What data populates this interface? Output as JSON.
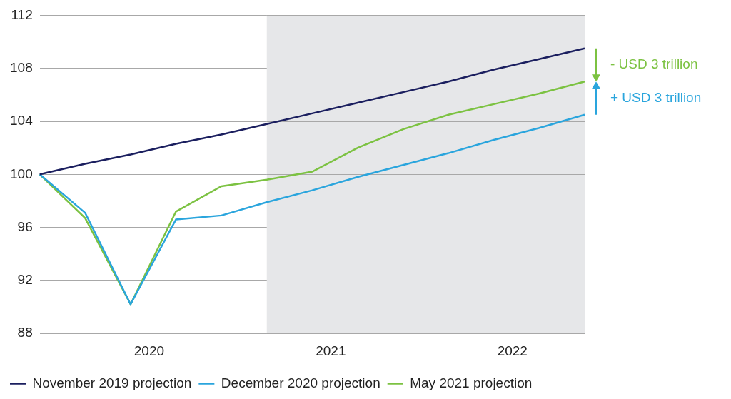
{
  "chart_data": {
    "type": "line",
    "categories": [
      null,
      null,
      "2020",
      null,
      null,
      null,
      "2021",
      null,
      null,
      null,
      "2022",
      null,
      null
    ],
    "series": [
      {
        "name": "November 2019 projection",
        "color": "#1b1f5f",
        "values": [
          100,
          100.8,
          101.5,
          102.3,
          103.0,
          103.8,
          104.6,
          105.4,
          106.2,
          107.0,
          107.9,
          108.7,
          109.5
        ]
      },
      {
        "name": "December 2020 projection",
        "color": "#2aa5dd",
        "values": [
          100,
          97.1,
          90.2,
          96.6,
          96.9,
          97.9,
          98.8,
          99.8,
          100.7,
          101.6,
          102.6,
          103.5,
          104.5
        ]
      },
      {
        "name": "May 2021 projection",
        "color": "#7cc242",
        "values": [
          100,
          96.7,
          90.2,
          97.2,
          99.1,
          99.6,
          100.2,
          102.0,
          103.4,
          104.5,
          105.3,
          106.1,
          107.0
        ]
      }
    ],
    "ylim": [
      88,
      112
    ],
    "yticks": [
      88,
      92,
      96,
      100,
      104,
      108,
      112
    ],
    "grid": true,
    "legend": "bottom",
    "shaded_from": 5,
    "annotations": [
      {
        "text": "- USD 3 trillion",
        "color": "#7cc242",
        "from": "November 2019 projection",
        "to": "May 2021 projection"
      },
      {
        "text": "+ USD 3 trillion",
        "color": "#2aa5dd",
        "from": "December 2020 projection",
        "to": "May 2021 projection"
      }
    ]
  }
}
